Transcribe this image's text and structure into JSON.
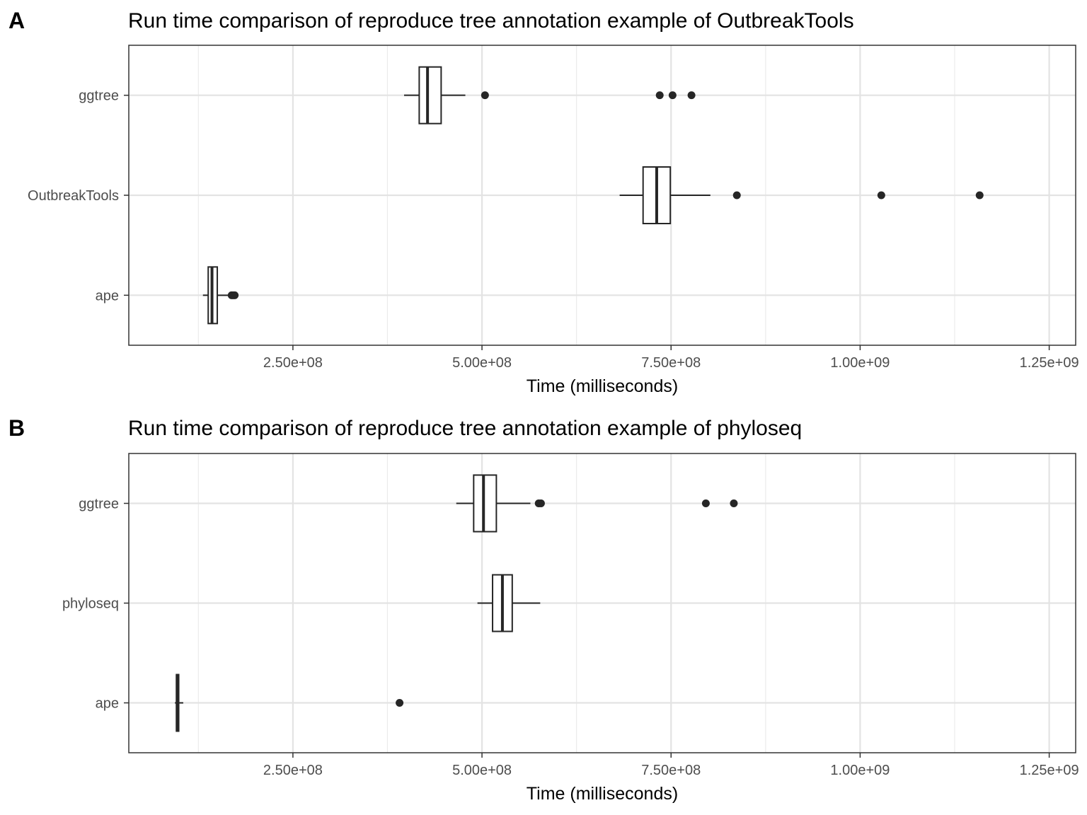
{
  "chart_data": [
    {
      "type": "boxplot",
      "panel_label": "A",
      "title": "Run time comparison of reproduce tree annotation example of OutbreakTools",
      "xlabel": "Time (milliseconds)",
      "ylabel": "",
      "xlim": [
        33000000,
        1285000000
      ],
      "xticks": [
        250000000,
        500000000,
        750000000,
        1000000000,
        1250000000
      ],
      "xtick_labels": [
        "2.50e+08",
        "5.00e+08",
        "7.50e+08",
        "1.00e+09",
        "1.25e+09"
      ],
      "categories": [
        "ggtree",
        "OutbreakTools",
        "ape"
      ],
      "grid": true,
      "boxes": [
        {
          "category": "ggtree",
          "whisker_low": 397000000,
          "q1": 417000000,
          "median": 428000000,
          "q3": 446000000,
          "whisker_high": 478000000,
          "outliers": [
            504000000,
            735000000,
            752000000,
            777000000
          ]
        },
        {
          "category": "OutbreakTools",
          "whisker_low": 682000000,
          "q1": 713000000,
          "median": 731000000,
          "q3": 749000000,
          "whisker_high": 802000000,
          "outliers": [
            837000000,
            1028000000,
            1158000000
          ]
        },
        {
          "category": "ape",
          "whisker_low": 131000000,
          "q1": 138000000,
          "median": 143000000,
          "q3": 150000000,
          "whisker_high": 166000000,
          "outliers": [
            169000000,
            171000000,
            173000000
          ]
        }
      ]
    },
    {
      "type": "boxplot",
      "panel_label": "B",
      "title": "Run time comparison of reproduce tree annotation example of phyloseq",
      "xlabel": "Time (milliseconds)",
      "ylabel": "",
      "xlim": [
        33000000,
        1285000000
      ],
      "xticks": [
        250000000,
        500000000,
        750000000,
        1000000000,
        1250000000
      ],
      "xtick_labels": [
        "2.50e+08",
        "5.00e+08",
        "7.50e+08",
        "1.00e+09",
        "1.25e+09"
      ],
      "categories": [
        "ggtree",
        "phyloseq",
        "ape"
      ],
      "grid": true,
      "boxes": [
        {
          "category": "ggtree",
          "whisker_low": 466000000,
          "q1": 489000000,
          "median": 502000000,
          "q3": 519000000,
          "whisker_high": 564000000,
          "outliers": [
            575000000,
            578000000,
            796000000,
            833000000
          ]
        },
        {
          "category": "phyloseq",
          "whisker_low": 494000000,
          "q1": 514000000,
          "median": 527000000,
          "q3": 540000000,
          "whisker_high": 577000000,
          "outliers": []
        },
        {
          "category": "ape",
          "whisker_low": 94000000,
          "q1": 96000000,
          "median": 97000000,
          "q3": 99000000,
          "whisker_high": 105000000,
          "outliers": [
            391000000
          ]
        }
      ]
    }
  ]
}
